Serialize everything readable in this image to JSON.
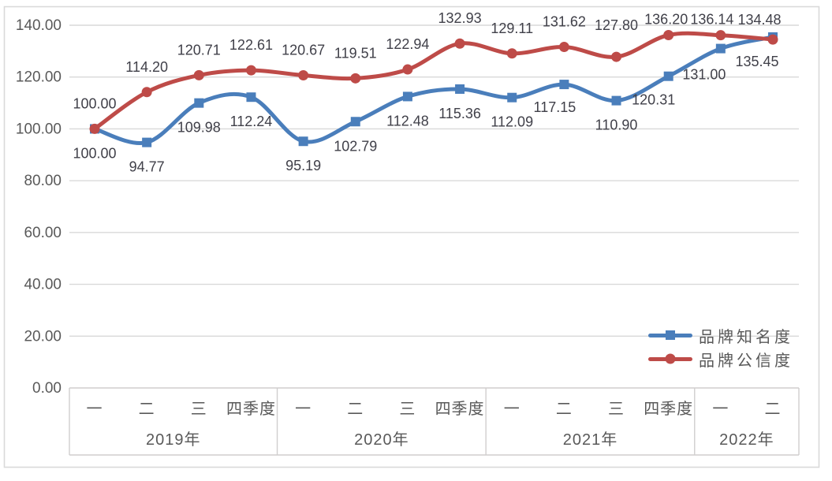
{
  "chart_data": {
    "type": "line",
    "title": "",
    "quarters": [
      "一",
      "二",
      "三",
      "四季度",
      "一",
      "二",
      "三",
      "四季度",
      "一",
      "二",
      "三",
      "四季度",
      "一",
      "二"
    ],
    "year_groups": [
      {
        "label": "2019年",
        "count": 4
      },
      {
        "label": "2020年",
        "count": 4
      },
      {
        "label": "2021年",
        "count": 4
      },
      {
        "label": "2022年",
        "count": 2
      }
    ],
    "y_axis": {
      "min": 0,
      "max": 140,
      "step": 20,
      "tick_labels": [
        "0.00",
        "20.00",
        "40.00",
        "60.00",
        "80.00",
        "100.00",
        "120.00",
        "140.00"
      ]
    },
    "series": [
      {
        "name": "品牌知名度",
        "color": "#4A7EBB",
        "marker": "square",
        "values": [
          100.0,
          94.77,
          109.98,
          112.24,
          95.19,
          102.79,
          112.48,
          115.36,
          112.09,
          117.15,
          110.9,
          120.31,
          131.0,
          135.45
        ],
        "labels": [
          "100.00",
          "94.77",
          "109.98",
          "112.24",
          "95.19",
          "102.79",
          "112.48",
          "115.36",
          "112.09",
          "117.15",
          "110.90",
          "120.31",
          "131.00",
          "135.45"
        ]
      },
      {
        "name": "品牌公信度",
        "color": "#BE4B48",
        "marker": "circle",
        "values": [
          100.0,
          114.2,
          120.71,
          122.61,
          120.67,
          119.51,
          122.94,
          132.93,
          129.11,
          131.62,
          127.8,
          136.2,
          136.14,
          134.48
        ],
        "labels": [
          "100.00",
          "114.20",
          "120.71",
          "122.61",
          "120.67",
          "119.51",
          "122.94",
          "132.93",
          "129.11",
          "131.62",
          "127.80",
          "136.20",
          "136.14",
          "134.48"
        ]
      }
    ],
    "legend_position": "right-bottom",
    "grid": true,
    "data_labels": true
  },
  "colors": {
    "grid": "#D9D9D9",
    "table_border": "#D0CECE",
    "outer_border": "#D9D9D9",
    "axis_text": "#595959",
    "data_label_text": "#404049"
  }
}
